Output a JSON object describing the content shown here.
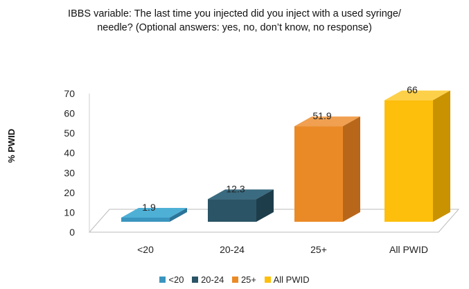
{
  "chart_data": {
    "type": "bar",
    "title_lines": [
      "IBBS variable: The last time you injected did you inject with a used syringe/",
      "needle? (Optional answers: yes, no, don’t know, no response)"
    ],
    "xlabel": "",
    "ylabel": "% PWID",
    "categories": [
      "<20",
      "20-24",
      "25+",
      "All PWID"
    ],
    "values": [
      1.9,
      12.3,
      51.9,
      66
    ],
    "data_labels": [
      "1.9",
      "12.3",
      "51.9",
      "66"
    ],
    "y_ticks": [
      0,
      10,
      20,
      30,
      40,
      50,
      60,
      70
    ],
    "ylim": [
      0,
      70
    ],
    "grid": false,
    "three_d": true,
    "legend": {
      "position": "bottom",
      "entries": [
        "<20",
        "20-24",
        "25+",
        "All PWID"
      ]
    },
    "colors": {
      "front": [
        "#3a95be",
        "#2b5466",
        "#ea8a26",
        "#fdbf0c"
      ],
      "top": [
        "#4fb0d6",
        "#3a6b80",
        "#f0a050",
        "#fdd04a"
      ],
      "side": [
        "#2a7599",
        "#1e3d4a",
        "#b8671a",
        "#c99200"
      ],
      "legend": [
        "#3a95be",
        "#2b5466",
        "#ea8a26",
        "#fdbf0c"
      ]
    }
  }
}
